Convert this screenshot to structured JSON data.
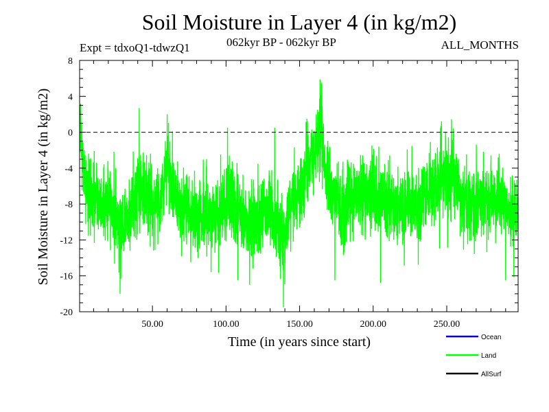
{
  "page": {
    "title": "Soil Moisture in Layer 4 (in kg/m2)",
    "expt": "Expt = tdxoQ1-tdwzQ1",
    "period": "062kyr BP - 062kyr BP",
    "months": "ALL_MONTHS"
  },
  "colors": {
    "ocean": "#0000ff",
    "land": "#00ff00",
    "allsurf": "#000000",
    "zero_line": "#000000"
  },
  "chart_data": {
    "type": "line",
    "title": "Soil Moisture in Layer 4 (in kg/m2)",
    "xlabel": "Time (in years since start)",
    "ylabel": "Soil Moisture in Layer 4 (in kg/m2)",
    "xlim": [
      0.5,
      298.5
    ],
    "ylim": [
      -20,
      8
    ],
    "x_ticks": [
      50,
      100,
      150,
      200,
      250
    ],
    "x_tick_labels": [
      "50.00",
      "100.00",
      "150.00",
      "200.00",
      "250.00"
    ],
    "y_ticks": [
      8,
      4,
      0,
      -4,
      -8,
      -12,
      -16,
      -20
    ],
    "y_tick_labels": [
      "8",
      "4",
      "0",
      "-4",
      "-8",
      "-12",
      "-16",
      "-20"
    ],
    "reference_line": {
      "y": 0,
      "style": "dashed"
    },
    "legend": [
      {
        "name": "Ocean",
        "color": "#0000ff"
      },
      {
        "name": "Land",
        "color": "#00ff00"
      },
      {
        "name": "AllSurf",
        "color": "#000000"
      }
    ],
    "legend_position": "bottom-right",
    "series": [
      {
        "name": "Land",
        "color": "#00ff00",
        "sampling": "monthly",
        "x_start": 0.5,
        "x_end": 298.5,
        "points": 3576,
        "anchors": {
          "x": [
            0.5,
            1,
            2,
            4,
            8,
            14,
            20,
            28,
            33,
            40,
            43,
            50,
            56,
            60,
            64,
            70,
            80,
            90,
            100,
            102,
            105,
            110,
            118,
            125,
            130,
            137,
            139,
            142,
            150,
            155,
            160,
            163,
            166,
            170,
            180,
            190,
            200,
            210,
            220,
            230,
            240,
            246,
            250,
            255,
            260,
            270,
            280,
            290,
            296,
            298.5
          ],
          "y": [
            1.0,
            2.0,
            -2.5,
            -5.5,
            -7.0,
            -8.0,
            -7.5,
            -10.5,
            -9.5,
            -6.5,
            -6.5,
            -8.0,
            -7.0,
            -4.0,
            -6.0,
            -8.5,
            -9.0,
            -9.5,
            -8.0,
            -7.0,
            -8.0,
            -9.5,
            -10.0,
            -9.0,
            -8.5,
            -11.5,
            -12.0,
            -9.0,
            -6.5,
            -4.0,
            -3.0,
            0.5,
            -2.0,
            -7.0,
            -8.0,
            -7.0,
            -6.5,
            -8.0,
            -8.5,
            -8.5,
            -6.0,
            -4.5,
            -4.0,
            -5.5,
            -7.5,
            -8.0,
            -7.5,
            -8.0,
            -9.5,
            -8.5
          ]
        },
        "noise_sd": 2.1,
        "observed_max": {
          "x": 165,
          "y": 5.5
        },
        "observed_min": {
          "x": 139,
          "y": -19.5
        },
        "notable_spikes": [
          {
            "x": 1,
            "y": 2.5
          },
          {
            "x": 28,
            "y": -18.0
          },
          {
            "x": 41,
            "y": 2.7
          },
          {
            "x": 60,
            "y": 2.0
          },
          {
            "x": 101,
            "y": 0.5
          },
          {
            "x": 108,
            "y": -16.5
          },
          {
            "x": 116,
            "y": -17.0
          },
          {
            "x": 133,
            "y": 0.5
          },
          {
            "x": 139,
            "y": -19.5
          },
          {
            "x": 155,
            "y": 1.5
          },
          {
            "x": 165,
            "y": 5.5
          },
          {
            "x": 174,
            "y": -16.5
          },
          {
            "x": 205,
            "y": -16.8
          },
          {
            "x": 246,
            "y": 0.7
          },
          {
            "x": 290,
            "y": -16.5
          }
        ]
      }
    ]
  }
}
